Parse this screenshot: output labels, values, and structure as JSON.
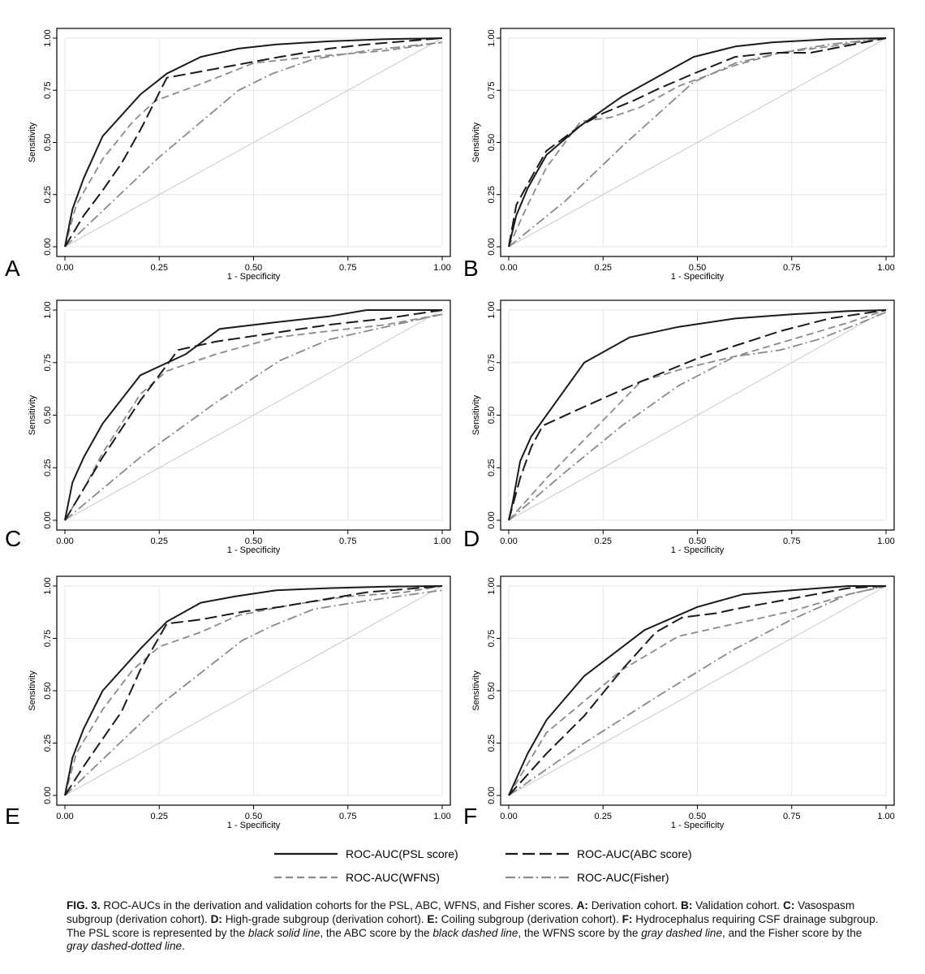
{
  "figure": {
    "caption": {
      "fig_label": "FIG. 3.",
      "parts": [
        {
          "t": "FIG. 3.",
          "s": "b"
        },
        {
          "t": " ROC-AUCs in the derivation and validation cohorts for the PSL, ABC, WFNS, and Fisher scores. ",
          "s": ""
        },
        {
          "t": "A:",
          "s": "b"
        },
        {
          "t": " Derivation cohort. ",
          "s": ""
        },
        {
          "t": "B:",
          "s": "b"
        },
        {
          "t": " Validation cohort. ",
          "s": ""
        },
        {
          "t": "C:",
          "s": "b"
        },
        {
          "t": " Vasospasm subgroup (derivation cohort). ",
          "s": ""
        },
        {
          "t": "D:",
          "s": "b"
        },
        {
          "t": " High-grade subgroup (derivation cohort). ",
          "s": ""
        },
        {
          "t": "E:",
          "s": "b"
        },
        {
          "t": " Coiling subgroup (derivation cohort). ",
          "s": ""
        },
        {
          "t": "F:",
          "s": "b"
        },
        {
          "t": " Hydrocephalus requiring CSF drainage subgroup. The PSL score is represented by the ",
          "s": ""
        },
        {
          "t": "black solid line",
          "s": "i"
        },
        {
          "t": ", the ABC score by the ",
          "s": ""
        },
        {
          "t": "black dashed line",
          "s": "i"
        },
        {
          "t": ", the WFNS score by the ",
          "s": ""
        },
        {
          "t": "gray dashed line",
          "s": "i"
        },
        {
          "t": ", and the Fisher score by the ",
          "s": ""
        },
        {
          "t": "gray dashed-dotted line",
          "s": "i"
        },
        {
          "t": ".",
          "s": ""
        }
      ]
    },
    "legend": {
      "placement": "bottom-center",
      "entries": [
        {
          "label": "ROC-AUC(PSL score)",
          "series": "psl"
        },
        {
          "label": "ROC-AUC(ABC score)",
          "series": "abc"
        },
        {
          "label": "ROC-AUC(WFNS)",
          "series": "wfns"
        },
        {
          "label": "ROC-AUC(Fisher)",
          "series": "fisher"
        }
      ]
    },
    "series_styles": {
      "psl": {
        "color": "#1a1a1a",
        "dash": "solid"
      },
      "abc": {
        "color": "#1a1a1a",
        "dash": "long-dashed"
      },
      "wfns": {
        "color": "#8a8a8a",
        "dash": "dashed"
      },
      "fisher": {
        "color": "#8a8a8a",
        "dash": "dash-dot"
      },
      "reference": {
        "color": "#c8c8c8",
        "dash": "solid"
      },
      "grid": "#e6e6e6"
    }
  },
  "chart_data": [
    {
      "panel": "A",
      "type": "line",
      "xlabel": "1 - Specificity",
      "ylabel": "Sensitivity",
      "xlim": [
        0,
        1
      ],
      "ylim": [
        0,
        1
      ],
      "grid": true,
      "xticks": [
        "0.00",
        "0.25",
        "0.50",
        "0.75",
        "1.00"
      ],
      "yticks": [
        "0.00",
        "0.25",
        "0.50",
        "0.75",
        "1.00"
      ],
      "series": [
        {
          "key": "psl",
          "x": [
            0,
            0.02,
            0.05,
            0.1,
            0.2,
            0.27,
            0.36,
            0.46,
            0.56,
            0.7,
            0.85,
            1
          ],
          "y": [
            0,
            0.18,
            0.33,
            0.53,
            0.73,
            0.83,
            0.91,
            0.95,
            0.97,
            0.985,
            0.995,
            1
          ]
        },
        {
          "key": "abc",
          "x": [
            0,
            0.05,
            0.1,
            0.15,
            0.2,
            0.27,
            0.36,
            0.48,
            0.57,
            0.7,
            0.8,
            1
          ],
          "y": [
            0,
            0.15,
            0.27,
            0.4,
            0.56,
            0.81,
            0.84,
            0.88,
            0.91,
            0.95,
            0.97,
            1
          ]
        },
        {
          "key": "wfns",
          "x": [
            0,
            0.03,
            0.1,
            0.18,
            0.24,
            0.36,
            0.5,
            0.65,
            0.85,
            1
          ],
          "y": [
            0,
            0.2,
            0.42,
            0.6,
            0.7,
            0.78,
            0.88,
            0.91,
            0.94,
            0.98
          ]
        },
        {
          "key": "fisher",
          "x": [
            0,
            0.25,
            0.46,
            0.55,
            0.66,
            0.8,
            1
          ],
          "y": [
            0,
            0.43,
            0.75,
            0.83,
            0.9,
            0.94,
            0.98
          ]
        }
      ]
    },
    {
      "panel": "B",
      "type": "line",
      "xlabel": "1 - Specificity",
      "ylabel": "Sensitivity",
      "xlim": [
        0,
        1
      ],
      "ylim": [
        0,
        1
      ],
      "grid": true,
      "xticks": [
        "0.00",
        "0.25",
        "0.50",
        "0.75",
        "1.00"
      ],
      "yticks": [
        "0.00",
        "0.25",
        "0.50",
        "0.75",
        "1.00"
      ],
      "series": [
        {
          "key": "psl",
          "x": [
            0,
            0.02,
            0.05,
            0.1,
            0.19,
            0.3,
            0.4,
            0.49,
            0.6,
            0.7,
            0.85,
            1
          ],
          "y": [
            0,
            0.15,
            0.28,
            0.44,
            0.58,
            0.72,
            0.82,
            0.91,
            0.96,
            0.98,
            0.995,
            1
          ]
        },
        {
          "key": "abc",
          "x": [
            0,
            0.02,
            0.05,
            0.1,
            0.19,
            0.25,
            0.33,
            0.4,
            0.49,
            0.6,
            0.7,
            0.8,
            1
          ],
          "y": [
            0,
            0.2,
            0.3,
            0.46,
            0.58,
            0.64,
            0.7,
            0.76,
            0.83,
            0.91,
            0.93,
            0.93,
            1
          ]
        },
        {
          "key": "wfns",
          "x": [
            0,
            0.05,
            0.1,
            0.19,
            0.27,
            0.35,
            0.45,
            0.6,
            0.72,
            0.85,
            1
          ],
          "y": [
            0,
            0.2,
            0.38,
            0.6,
            0.62,
            0.67,
            0.77,
            0.87,
            0.93,
            0.96,
            1
          ]
        },
        {
          "key": "fisher",
          "x": [
            0,
            0.15,
            0.3,
            0.49,
            0.6,
            0.72,
            0.85,
            1
          ],
          "y": [
            0,
            0.22,
            0.48,
            0.79,
            0.88,
            0.93,
            0.97,
            1
          ]
        }
      ]
    },
    {
      "panel": "C",
      "type": "line",
      "xlabel": "1 - Specificity",
      "ylabel": "Sensitivity",
      "xlim": [
        0,
        1
      ],
      "ylim": [
        0,
        1
      ],
      "grid": true,
      "xticks": [
        "0.00",
        "0.25",
        "0.50",
        "0.75",
        "1.00"
      ],
      "yticks": [
        "0.00",
        "0.25",
        "0.50",
        "0.75",
        "1.00"
      ],
      "series": [
        {
          "key": "psl",
          "x": [
            0,
            0.02,
            0.05,
            0.1,
            0.2,
            0.32,
            0.41,
            0.55,
            0.7,
            0.8,
            1
          ],
          "y": [
            0,
            0.18,
            0.3,
            0.46,
            0.69,
            0.79,
            0.91,
            0.94,
            0.97,
            1,
            1
          ]
        },
        {
          "key": "abc",
          "x": [
            0,
            0.05,
            0.1,
            0.2,
            0.3,
            0.4,
            0.55,
            0.7,
            0.85,
            1
          ],
          "y": [
            0,
            0.15,
            0.3,
            0.57,
            0.81,
            0.85,
            0.89,
            0.93,
            0.96,
            1
          ]
        },
        {
          "key": "wfns",
          "x": [
            0,
            0.05,
            0.1,
            0.2,
            0.27,
            0.4,
            0.56,
            0.7,
            0.85,
            1
          ],
          "y": [
            0,
            0.15,
            0.32,
            0.6,
            0.71,
            0.79,
            0.87,
            0.9,
            0.93,
            0.98
          ]
        },
        {
          "key": "fisher",
          "x": [
            0,
            0.2,
            0.4,
            0.57,
            0.7,
            0.85,
            1
          ],
          "y": [
            0,
            0.3,
            0.56,
            0.76,
            0.86,
            0.92,
            0.98
          ]
        }
      ]
    },
    {
      "panel": "D",
      "type": "line",
      "xlabel": "1 - Specificity",
      "ylabel": "Sensitivity",
      "xlim": [
        0,
        1
      ],
      "ylim": [
        0,
        1
      ],
      "grid": true,
      "xticks": [
        "0.00",
        "0.25",
        "0.50",
        "0.75",
        "1.00"
      ],
      "yticks": [
        "0.00",
        "0.25",
        "0.50",
        "0.75",
        "1.00"
      ],
      "series": [
        {
          "key": "psl",
          "x": [
            0,
            0.01,
            0.03,
            0.06,
            0.1,
            0.2,
            0.32,
            0.45,
            0.6,
            0.75,
            0.9,
            1
          ],
          "y": [
            0,
            0.08,
            0.28,
            0.4,
            0.5,
            0.75,
            0.87,
            0.92,
            0.96,
            0.98,
            0.995,
            1
          ]
        },
        {
          "key": "abc",
          "x": [
            0,
            0.03,
            0.06,
            0.09,
            0.2,
            0.35,
            0.5,
            0.6,
            0.72,
            0.85,
            1
          ],
          "y": [
            0,
            0.2,
            0.35,
            0.45,
            0.54,
            0.66,
            0.77,
            0.83,
            0.9,
            0.96,
            1
          ]
        },
        {
          "key": "wfns",
          "x": [
            0,
            0.1,
            0.22,
            0.35,
            0.46,
            0.6,
            0.75,
            0.9,
            1
          ],
          "y": [
            0,
            0.2,
            0.42,
            0.66,
            0.72,
            0.78,
            0.86,
            0.94,
            1
          ]
        },
        {
          "key": "fisher",
          "x": [
            0,
            0.15,
            0.3,
            0.45,
            0.6,
            0.72,
            0.82,
            0.92,
            1
          ],
          "y": [
            0,
            0.23,
            0.45,
            0.64,
            0.78,
            0.81,
            0.86,
            0.93,
            0.99
          ]
        }
      ]
    },
    {
      "panel": "E",
      "type": "line",
      "xlabel": "1 - Specificity",
      "ylabel": "Sensitivity",
      "xlim": [
        0,
        1
      ],
      "ylim": [
        0,
        1
      ],
      "grid": true,
      "xticks": [
        "0.00",
        "0.25",
        "0.50",
        "0.75",
        "1.00"
      ],
      "yticks": [
        "0.00",
        "0.25",
        "0.50",
        "0.75",
        "1.00"
      ],
      "series": [
        {
          "key": "psl",
          "x": [
            0,
            0.02,
            0.05,
            0.1,
            0.2,
            0.27,
            0.36,
            0.45,
            0.56,
            0.7,
            0.85,
            1
          ],
          "y": [
            0,
            0.18,
            0.32,
            0.5,
            0.7,
            0.83,
            0.92,
            0.95,
            0.98,
            0.99,
            0.997,
            1
          ]
        },
        {
          "key": "abc",
          "x": [
            0,
            0.05,
            0.1,
            0.15,
            0.2,
            0.27,
            0.36,
            0.48,
            0.57,
            0.7,
            0.8,
            1
          ],
          "y": [
            0,
            0.14,
            0.27,
            0.4,
            0.6,
            0.82,
            0.84,
            0.88,
            0.9,
            0.94,
            0.97,
            1
          ]
        },
        {
          "key": "wfns",
          "x": [
            0,
            0.03,
            0.1,
            0.18,
            0.25,
            0.36,
            0.46,
            0.6,
            0.75,
            0.9,
            1
          ],
          "y": [
            0,
            0.2,
            0.41,
            0.6,
            0.71,
            0.78,
            0.86,
            0.91,
            0.95,
            0.97,
            1
          ]
        },
        {
          "key": "fisher",
          "x": [
            0,
            0.25,
            0.47,
            0.55,
            0.66,
            0.8,
            1
          ],
          "y": [
            0,
            0.43,
            0.74,
            0.81,
            0.89,
            0.93,
            0.98
          ]
        }
      ]
    },
    {
      "panel": "F",
      "type": "line",
      "xlabel": "1 - Specificity",
      "ylabel": "Sensitivity",
      "xlim": [
        0,
        1
      ],
      "ylim": [
        0,
        1
      ],
      "grid": true,
      "xticks": [
        "0.00",
        "0.25",
        "0.50",
        "0.75",
        "1.00"
      ],
      "yticks": [
        "0.00",
        "0.25",
        "0.50",
        "0.75",
        "1.00"
      ],
      "series": [
        {
          "key": "psl",
          "x": [
            0,
            0.02,
            0.05,
            0.1,
            0.2,
            0.36,
            0.5,
            0.62,
            0.75,
            0.9,
            1
          ],
          "y": [
            0,
            0.08,
            0.2,
            0.36,
            0.57,
            0.79,
            0.9,
            0.96,
            0.98,
            1,
            1
          ]
        },
        {
          "key": "abc",
          "x": [
            0,
            0.05,
            0.1,
            0.2,
            0.3,
            0.39,
            0.46,
            0.55,
            0.6,
            0.75,
            0.9,
            1
          ],
          "y": [
            0,
            0.1,
            0.2,
            0.38,
            0.6,
            0.78,
            0.85,
            0.87,
            0.89,
            0.94,
            0.99,
            1
          ]
        },
        {
          "key": "wfns",
          "x": [
            0,
            0.05,
            0.1,
            0.2,
            0.3,
            0.45,
            0.6,
            0.75,
            0.9,
            1
          ],
          "y": [
            0,
            0.15,
            0.3,
            0.45,
            0.6,
            0.76,
            0.82,
            0.88,
            0.96,
            1
          ]
        },
        {
          "key": "fisher",
          "x": [
            0,
            0.2,
            0.4,
            0.6,
            0.75,
            0.9,
            1
          ],
          "y": [
            0,
            0.25,
            0.48,
            0.7,
            0.84,
            0.96,
            1
          ]
        }
      ]
    }
  ]
}
